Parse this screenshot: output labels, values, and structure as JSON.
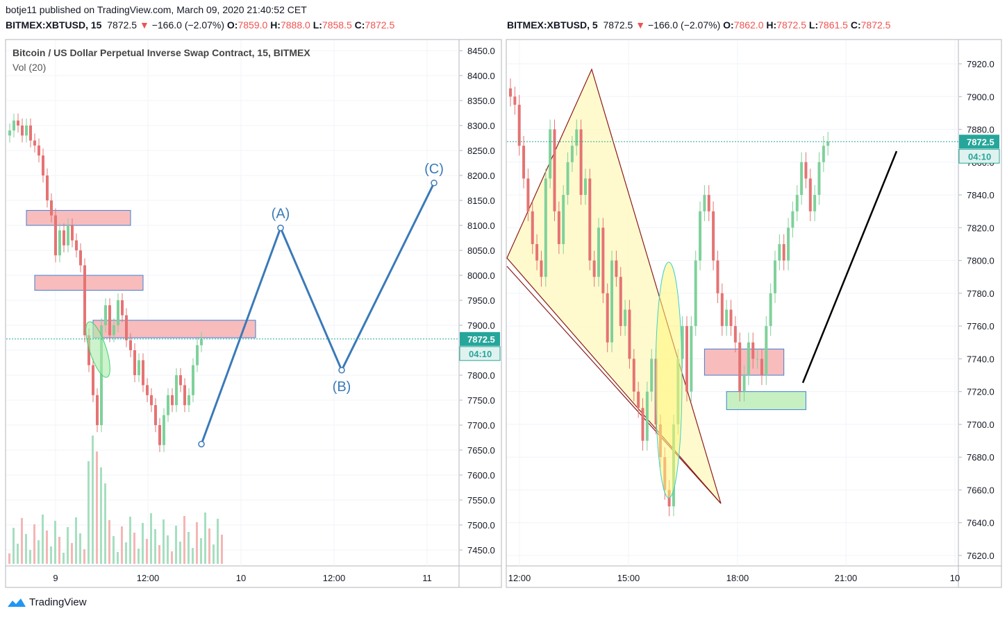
{
  "header": {
    "published": "botje11 published on TradingView.com, March 09, 2020 21:40:52 CET",
    "left": {
      "symbol": "BITMEX:XBTUSD, 15",
      "price": "7872.5",
      "change": "−166.0 (−2.07%)",
      "o_label": "O:",
      "o": "7859.0",
      "h_label": "H:",
      "h": "7888.0",
      "l_label": "L:",
      "l": "7858.5",
      "c_label": "C:",
      "c": "7872.5"
    },
    "right": {
      "symbol": "BITMEX:XBTUSD, 5",
      "price": "7872.5",
      "change": "−166.0 (−2.07%)",
      "o_label": "O:",
      "o": "7862.0",
      "h_label": "H:",
      "h": "7872.5",
      "l_label": "L:",
      "l": "7861.5",
      "c_label": "C:",
      "c": "7872.5"
    }
  },
  "left_pane": {
    "title": "Bitcoin / US Dollar Perpetual Inverse Swap Contract, 15, BITMEX",
    "subtitle": "Vol (20)"
  },
  "brand": {
    "name": "TradingView",
    "color": "#2196f3"
  },
  "colors": {
    "up": "#26a69a",
    "down": "#ef5350",
    "up_soft": "#7fd19a",
    "down_soft": "#e57373",
    "wave": "#3a7ab8"
  },
  "chart_data": [
    {
      "type": "candlestick",
      "symbol": "BITMEX:XBTUSD",
      "interval": "15",
      "ylim": [
        7420,
        8480
      ],
      "price_ticks": [
        8450,
        8400,
        8350,
        8300,
        8250,
        8200,
        8150,
        8100,
        8050,
        8000,
        7950,
        7900,
        7850,
        7800,
        7750,
        7700,
        7650,
        7600,
        7550,
        7500,
        7450
      ],
      "price_tick_labels": [
        "8450.0",
        "8400.0",
        "8350.0",
        "8300.0",
        "8250.0",
        "8200.0",
        "8150.0",
        "8100.0",
        "8050.0",
        "8000.0",
        "7950.0",
        "7900.0",
        "7850.0",
        "7800.0",
        "7750.0",
        "7700.0",
        "7650.0",
        "7600.0",
        "7550.0",
        "7500.0",
        "7450.0"
      ],
      "time_labels": [
        "9",
        "12:00",
        "10",
        "12:00",
        "11"
      ],
      "last_price": "7872.5",
      "countdown": "04:10",
      "closes": [
        8290,
        8310,
        8300,
        8280,
        8300,
        8270,
        8260,
        8240,
        8200,
        8150,
        8120,
        8040,
        8090,
        8060,
        8100,
        8070,
        8050,
        8020,
        7880,
        7820,
        7760,
        7700,
        7900,
        7940,
        7880,
        7900,
        7950,
        7920,
        7870,
        7850,
        7800,
        7830,
        7780,
        7760,
        7740,
        7700,
        7660,
        7720,
        7760,
        7740,
        7800,
        7780,
        7740,
        7760,
        7820,
        7860,
        7872.5
      ],
      "zones": [
        {
          "kind": "supply",
          "top": 8130,
          "bottom": 8100,
          "start_index": 4,
          "end_index": 29
        },
        {
          "kind": "supply",
          "top": 8000,
          "bottom": 7970,
          "start_index": 6,
          "end_index": 32
        },
        {
          "kind": "supply",
          "top": 7910,
          "bottom": 7875,
          "start_index": 20,
          "end_index": 59
        }
      ],
      "wave_points": [
        {
          "label": "",
          "t": 32,
          "price": 7662
        },
        {
          "label": "(A)",
          "t": 44,
          "price": 8095
        },
        {
          "label": "(B)",
          "t": 55,
          "price": 7810
        },
        {
          "label": "(C)",
          "t": 72,
          "price": 8185
        }
      ]
    },
    {
      "type": "candlestick",
      "symbol": "BITMEX:XBTUSD",
      "interval": "5",
      "ylim": [
        7610,
        7930
      ],
      "price_ticks": [
        7920,
        7900,
        7880,
        7860,
        7840,
        7820,
        7800,
        7780,
        7760,
        7740,
        7720,
        7700,
        7680,
        7660,
        7640,
        7620
      ],
      "price_tick_labels": [
        "7920.0",
        "7900.0",
        "7880.0",
        "7860.0",
        "7840.0",
        "7820.0",
        "7800.0",
        "7780.0",
        "7760.0",
        "7740.0",
        "7720.0",
        "7700.0",
        "7680.0",
        "7660.0",
        "7640.0",
        "7620.0"
      ],
      "time_labels": [
        "12:00",
        "15:00",
        "18:00",
        "21:00",
        "10"
      ],
      "last_price": "7872.5",
      "countdown": "04:10",
      "closes": [
        7900,
        7895,
        7870,
        7850,
        7830,
        7810,
        7800,
        7790,
        7850,
        7880,
        7830,
        7810,
        7840,
        7860,
        7870,
        7880,
        7840,
        7850,
        7800,
        7790,
        7820,
        7780,
        7750,
        7800,
        7790,
        7760,
        7770,
        7740,
        7720,
        7710,
        7690,
        7720,
        7740,
        7700,
        7680,
        7660,
        7650,
        7700,
        7740,
        7760,
        7720,
        7760,
        7800,
        7830,
        7840,
        7830,
        7800,
        7780,
        7760,
        7770,
        7760,
        7750,
        7720,
        7730,
        7750,
        7740,
        7740,
        7730,
        7760,
        7780,
        7800,
        7810,
        7800,
        7820,
        7830,
        7840,
        7860,
        7850,
        7830,
        7840,
        7860,
        7870,
        7872.5
      ],
      "zones": [
        {
          "kind": "supply",
          "top": 7746,
          "bottom": 7730,
          "start_index": 44,
          "end_index": 62
        },
        {
          "kind": "demand",
          "top": 7720,
          "bottom": 7709,
          "start_index": 49,
          "end_index": 67
        }
      ]
    }
  ]
}
